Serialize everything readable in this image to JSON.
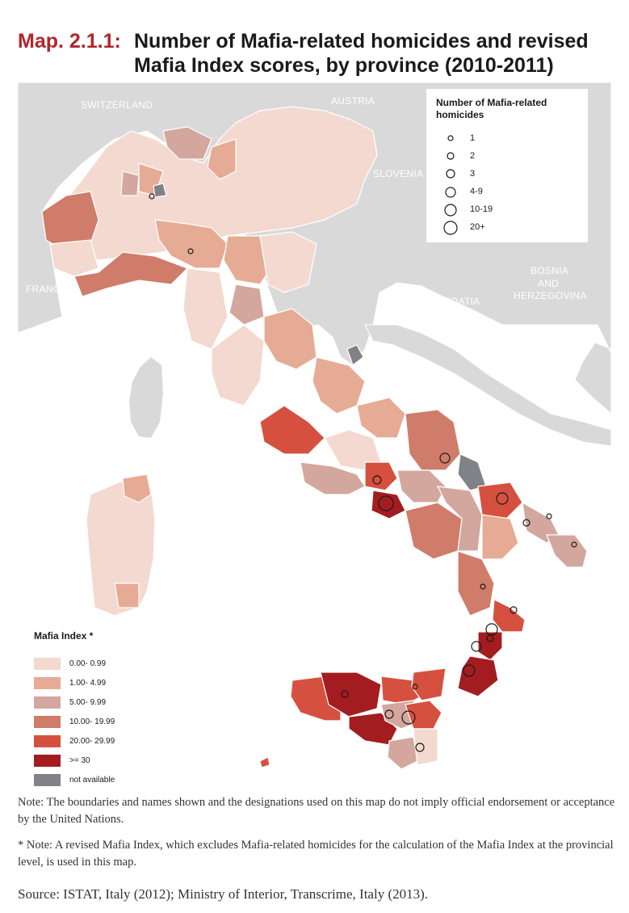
{
  "title": {
    "label": "Map. 2.1.1:",
    "line1": "Number of Mafia-related homicides and revised",
    "line2": "Mafia Index scores, by province (2010-2011)"
  },
  "countries": [
    "SWITZERLAND",
    "AUSTRIA",
    "SLOVENIA",
    "FRANCE",
    "CROATIA",
    "BOSNIA",
    "AND",
    "HERZEGOVINA"
  ],
  "homicide_legend": {
    "title": "Number of Mafia-related homicides",
    "items": [
      "1",
      "2",
      "3",
      "4-9",
      "10-19",
      "20+"
    ]
  },
  "index_legend": {
    "title": "Mafia Index *",
    "items": [
      {
        "label": "0.00- 0.99",
        "color": "#f3d9d0"
      },
      {
        "label": "1.00- 4.99",
        "color": "#e6ab95"
      },
      {
        "label": "5.00- 9.99",
        "color": "#d3a79e"
      },
      {
        "label": "10.00- 19.99",
        "color": "#cf7c6a"
      },
      {
        "label": "20.00- 29.99",
        "color": "#d6503f"
      },
      {
        "label": ">= 30",
        "color": "#a31d20"
      },
      {
        "label": "not available",
        "color": "#808287"
      }
    ]
  },
  "notes": {
    "note1": "Note: The boundaries and names shown and the designations used on this map do not imply official endorsement or acceptance by the United Nations.",
    "note2": "* Note: A revised Mafia Index, which excludes Mafia-related homicides for the calculation of the Mafia Index at the provincial level, is used in this map.",
    "source": "Source: ISTAT, Italy (2012); Ministry of Interior, Transcrime, Italy (2013)."
  }
}
